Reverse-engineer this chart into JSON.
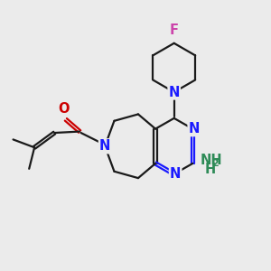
{
  "background_color": "#ebebeb",
  "atom_colors": {
    "N": "#1a1aff",
    "O": "#cc0000",
    "F": "#cc44aa",
    "C": "#000000",
    "NH2": "#2e8b57"
  },
  "bond_color": "#1a1a1a",
  "lw": 1.6
}
